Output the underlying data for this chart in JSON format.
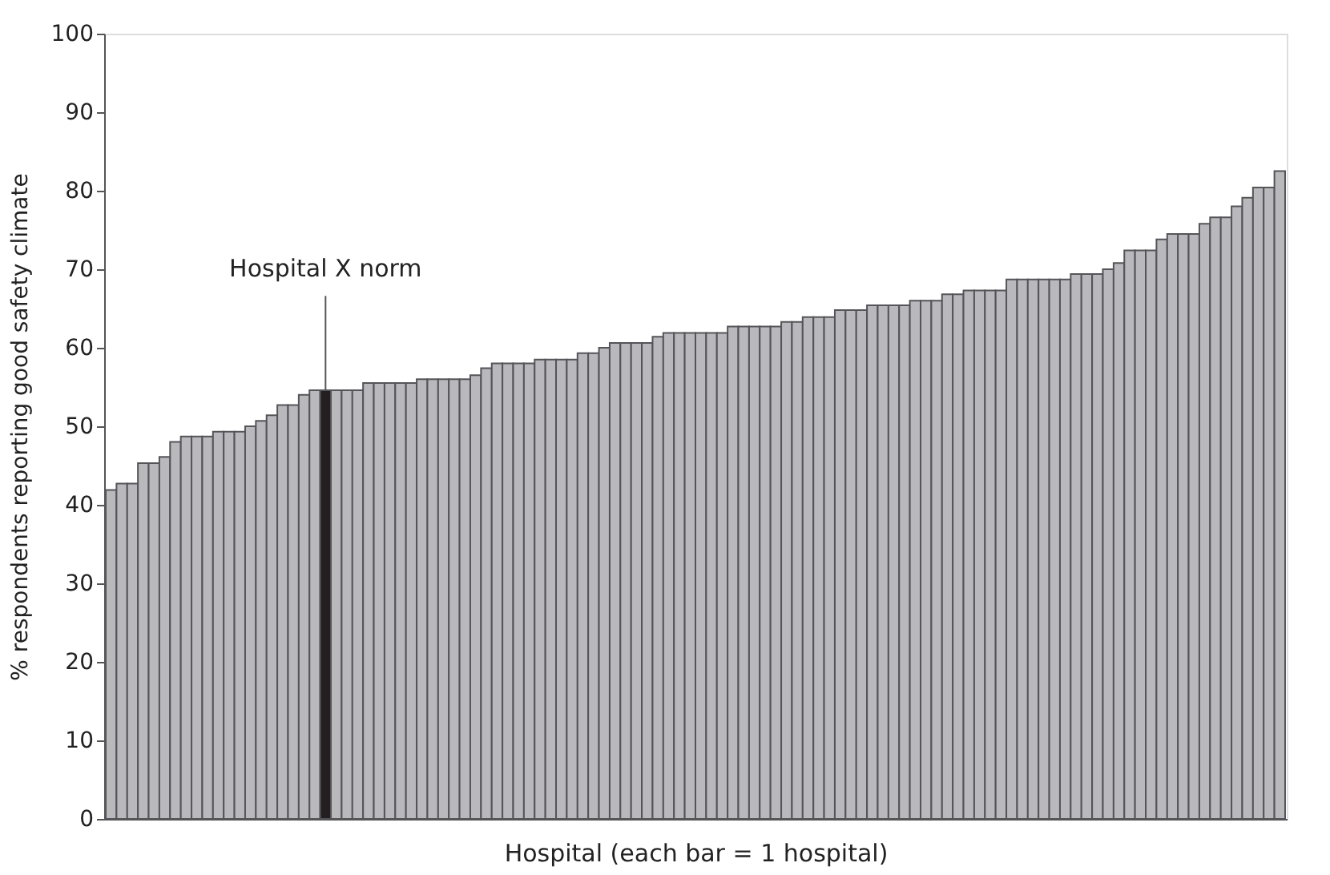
{
  "chart_data": {
    "type": "bar",
    "xlabel": "Hospital (each bar = 1 hospital)",
    "ylabel": "% respondents reporting good safety climate",
    "categories": [
      null,
      null,
      null,
      null,
      null,
      null,
      null,
      null,
      null,
      null,
      null,
      null,
      null,
      null,
      null,
      null,
      null,
      null,
      null,
      null,
      null,
      null,
      null,
      null,
      null,
      null,
      null,
      null,
      null,
      null,
      null,
      null,
      null,
      null,
      null,
      null,
      null,
      null,
      null,
      null,
      null,
      null,
      null,
      null,
      null,
      null,
      null,
      null,
      null,
      null,
      null,
      null,
      null,
      null,
      null,
      null,
      null,
      null,
      null,
      null,
      null,
      null,
      null,
      null,
      null,
      null,
      null,
      null,
      null,
      null,
      null,
      null,
      null,
      null,
      null,
      null,
      null,
      null,
      null,
      null,
      null,
      null,
      null,
      null,
      null,
      null,
      null,
      null,
      null,
      null,
      null,
      null,
      null,
      null,
      null,
      null,
      null,
      null,
      null,
      null,
      null,
      null,
      null,
      null,
      null,
      null,
      null,
      null,
      null,
      null
    ],
    "values": [
      41.9,
      42.7,
      42.7,
      45.3,
      45.3,
      46.1,
      48.0,
      48.7,
      48.7,
      48.7,
      49.3,
      49.3,
      49.3,
      50.0,
      50.7,
      51.4,
      52.7,
      52.7,
      54.0,
      54.6,
      54.6,
      54.6,
      54.6,
      54.6,
      55.5,
      55.5,
      55.5,
      55.5,
      55.5,
      56.0,
      56.0,
      56.0,
      56.0,
      56.0,
      56.5,
      57.4,
      58.0,
      58.0,
      58.0,
      58.0,
      58.5,
      58.5,
      58.5,
      58.5,
      59.3,
      59.3,
      60.0,
      60.6,
      60.6,
      60.6,
      60.6,
      61.4,
      61.9,
      61.9,
      61.9,
      61.9,
      61.9,
      61.9,
      62.7,
      62.7,
      62.7,
      62.7,
      62.7,
      63.3,
      63.3,
      63.9,
      63.9,
      63.9,
      64.8,
      64.8,
      64.8,
      65.4,
      65.4,
      65.4,
      65.4,
      66.0,
      66.0,
      66.0,
      66.8,
      66.8,
      67.3,
      67.3,
      67.3,
      67.3,
      68.7,
      68.7,
      68.7,
      68.7,
      68.7,
      68.7,
      69.4,
      69.4,
      69.4,
      70.0,
      70.8,
      72.4,
      72.4,
      72.4,
      73.8,
      74.5,
      74.5,
      74.5,
      75.8,
      76.6,
      76.6,
      78.0,
      79.1,
      80.4,
      80.4,
      82.5
    ],
    "colors": [
      "#b9b9bd",
      "#b9b9bd",
      "#b9b9bd",
      "#b9b9bd",
      "#b9b9bd",
      "#b9b9bd",
      "#b9b9bd",
      "#b9b9bd",
      "#b9b9bd",
      "#b9b9bd",
      "#b9b9bd",
      "#b9b9bd",
      "#b9b9bd",
      "#b9b9bd",
      "#b9b9bd",
      "#b9b9bd",
      "#b9b9bd",
      "#b9b9bd",
      "#b9b9bd",
      "#b9b9bd",
      "#231f20",
      "#b9b9bd",
      "#b9b9bd",
      "#b9b9bd",
      "#b9b9bd",
      "#b9b9bd",
      "#b9b9bd",
      "#b9b9bd",
      "#b9b9bd",
      "#b9b9bd",
      "#b9b9bd",
      "#b9b9bd",
      "#b9b9bd",
      "#b9b9bd",
      "#b9b9bd",
      "#b9b9bd",
      "#b9b9bd",
      "#b9b9bd",
      "#b9b9bd",
      "#b9b9bd",
      "#b9b9bd",
      "#b9b9bd",
      "#b9b9bd",
      "#b9b9bd",
      "#b9b9bd",
      "#b9b9bd",
      "#b9b9bd",
      "#b9b9bd",
      "#b9b9bd",
      "#b9b9bd",
      "#b9b9bd",
      "#b9b9bd",
      "#b9b9bd",
      "#b9b9bd",
      "#b9b9bd",
      "#b9b9bd",
      "#b9b9bd",
      "#b9b9bd",
      "#b9b9bd",
      "#b9b9bd",
      "#b9b9bd",
      "#b9b9bd",
      "#b9b9bd",
      "#b9b9bd",
      "#b9b9bd",
      "#b9b9bd",
      "#b9b9bd",
      "#b9b9bd",
      "#b9b9bd",
      "#b9b9bd",
      "#b9b9bd",
      "#b9b9bd",
      "#b9b9bd",
      "#b9b9bd",
      "#b9b9bd",
      "#b9b9bd",
      "#b9b9bd",
      "#b9b9bd",
      "#b9b9bd",
      "#b9b9bd",
      "#b9b9bd",
      "#b9b9bd",
      "#b9b9bd",
      "#b9b9bd",
      "#b9b9bd",
      "#b9b9bd",
      "#b9b9bd",
      "#b9b9bd",
      "#b9b9bd",
      "#b9b9bd",
      "#b9b9bd",
      "#b9b9bd",
      "#b9b9bd",
      "#b9b9bd",
      "#b9b9bd",
      "#b9b9bd",
      "#b9b9bd",
      "#b9b9bd",
      "#b9b9bd",
      "#b9b9bd",
      "#b9b9bd",
      "#b9b9bd",
      "#b9b9bd",
      "#b9b9bd",
      "#b9b9bd",
      "#b9b9bd",
      "#b9b9bd",
      "#b9b9bd",
      "#b9b9bd",
      "#b9b9bd"
    ],
    "annotations": [
      "Hospital X norm"
    ],
    "ylim": [
      0,
      100
    ],
    "yticks": [
      0,
      10,
      20,
      30,
      40,
      50,
      60,
      70,
      80,
      90,
      100
    ],
    "grid": false
  }
}
